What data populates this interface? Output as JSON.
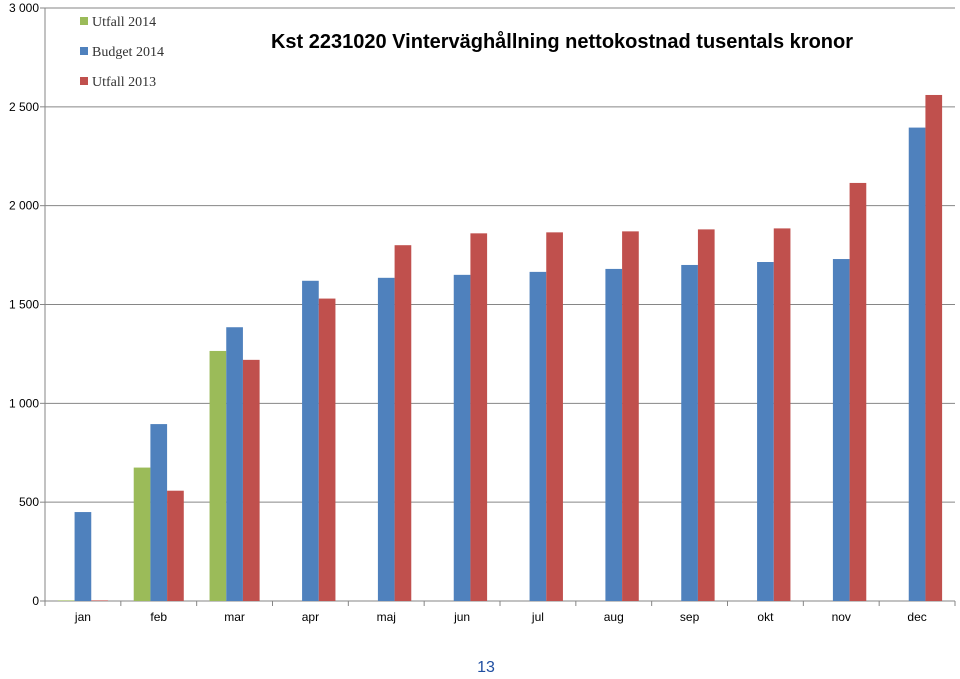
{
  "chart_data": {
    "type": "bar",
    "title": "Kst 2231020 Vinterväghållning nettokostnad tusentals kronor",
    "categories": [
      "jan",
      "feb",
      "mar",
      "apr",
      "maj",
      "jun",
      "jul",
      "aug",
      "sep",
      "okt",
      "nov",
      "dec"
    ],
    "ylim": [
      0,
      3000
    ],
    "yticks": [
      0,
      500,
      1000,
      1500,
      2000,
      2500,
      3000
    ],
    "ytick_labels": [
      "0",
      "500",
      "1 000",
      "1 500",
      "2 000",
      "2 500",
      "3 000"
    ],
    "grid": true,
    "legend_position": "top-left",
    "series": [
      {
        "name": "Utfall 2014",
        "color": "#9bbb59",
        "values": [
          3,
          675,
          1265,
          null,
          null,
          null,
          null,
          null,
          null,
          null,
          null,
          null
        ]
      },
      {
        "name": "Budget 2014",
        "color": "#4f81bd",
        "values": [
          450,
          895,
          1385,
          1620,
          1635,
          1650,
          1665,
          1680,
          1700,
          1715,
          1730,
          2395
        ]
      },
      {
        "name": "Utfall 2013",
        "color": "#c0504d",
        "values": [
          3,
          558,
          1220,
          1530,
          1800,
          1860,
          1865,
          1870,
          1880,
          1885,
          2115,
          2560
        ]
      }
    ]
  },
  "page": {
    "number": "13"
  }
}
